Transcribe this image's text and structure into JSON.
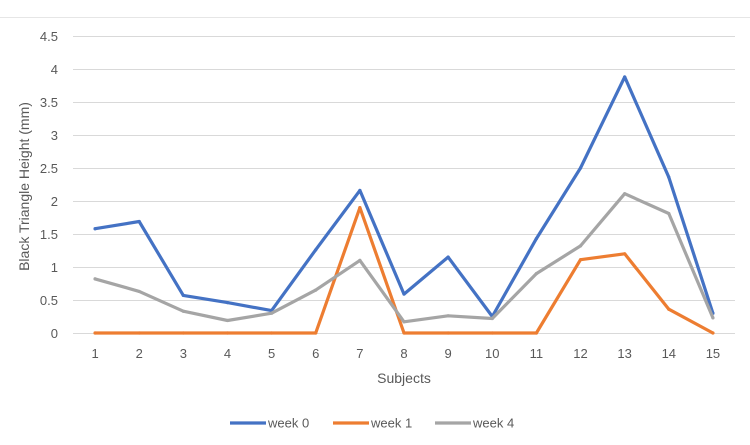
{
  "chart_data": {
    "type": "line",
    "title": "",
    "xlabel": "Subjects",
    "ylabel": "Black Triangle Height (mm)",
    "x": [
      1,
      2,
      3,
      4,
      5,
      6,
      7,
      8,
      9,
      10,
      11,
      12,
      13,
      14,
      15
    ],
    "ylim": [
      0,
      4.5
    ],
    "yticks": [
      0,
      0.5,
      1,
      1.5,
      2,
      2.5,
      3,
      3.5,
      4,
      4.5
    ],
    "ytick_labels": [
      "0",
      "0.5",
      "1",
      "1.5",
      "2",
      "2.5",
      "3",
      "3.5",
      "4",
      "4.5"
    ],
    "grid": true,
    "legend_position": "bottom",
    "series": [
      {
        "name": "week 0",
        "color": "#4472C4",
        "values": [
          1.58,
          1.69,
          0.57,
          0.46,
          0.34,
          1.26,
          2.16,
          0.59,
          1.15,
          0.25,
          1.43,
          2.5,
          3.88,
          2.36,
          0.3
        ]
      },
      {
        "name": "week 1",
        "color": "#ED7D31",
        "values": [
          0,
          0,
          0,
          0,
          0,
          0,
          1.9,
          0,
          0,
          0,
          0,
          1.11,
          1.2,
          0.36,
          0
        ]
      },
      {
        "name": "week 4",
        "color": "#A5A5A5",
        "values": [
          0.82,
          0.63,
          0.33,
          0.19,
          0.3,
          0.65,
          1.1,
          0.17,
          0.26,
          0.22,
          0.9,
          1.32,
          2.11,
          1.81,
          0.23
        ]
      }
    ]
  }
}
